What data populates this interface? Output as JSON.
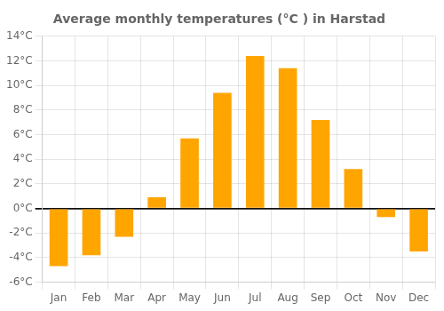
{
  "chart_data": {
    "type": "bar",
    "title": "Average monthly temperatures (°C ) in Harstad",
    "categories": [
      "Jan",
      "Feb",
      "Mar",
      "Apr",
      "May",
      "Jun",
      "Jul",
      "Aug",
      "Sep",
      "Oct",
      "Nov",
      "Dec"
    ],
    "values": [
      -4.7,
      -3.8,
      -2.3,
      0.9,
      5.7,
      9.4,
      12.4,
      11.4,
      7.2,
      3.2,
      -0.7,
      -3.5
    ],
    "color": "#FFA500",
    "ylim": [
      -6,
      14
    ],
    "yticks": [
      {
        "value": -6,
        "label": "-6°C"
      },
      {
        "value": -4,
        "label": "-4°C"
      },
      {
        "value": -2,
        "label": "-2°C"
      },
      {
        "value": 0,
        "label": "0°C"
      },
      {
        "value": 2,
        "label": "2°C"
      },
      {
        "value": 4,
        "label": "4°C"
      },
      {
        "value": 6,
        "label": "6°C"
      },
      {
        "value": 8,
        "label": "8°C"
      },
      {
        "value": 10,
        "label": "10°C"
      },
      {
        "value": 12,
        "label": "12°C"
      },
      {
        "value": 14,
        "label": "14°C"
      }
    ],
    "grid": true
  }
}
